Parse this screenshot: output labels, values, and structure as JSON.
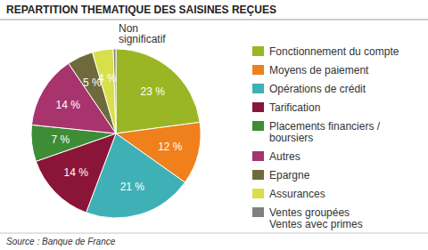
{
  "chart_data": {
    "type": "pie",
    "title": "REPARTITION THEMATIQUE DES SAISINES REÇUES",
    "source": "Source : Banque de France",
    "categories": [
      "Fonctionnement du compte",
      "Moyens de paiement",
      "Opérations de crédit",
      "Tarification",
      "Placements financiers /\nboursiers",
      "Autres",
      "Epargne",
      "Assurances",
      "Ventes groupées\nVentes avec primes"
    ],
    "values": [
      23,
      12,
      21,
      14,
      7,
      14,
      5,
      4,
      0.5
    ],
    "value_labels": [
      "23 %",
      "12 %",
      "21 %",
      "14 %",
      "7 %",
      "14 %",
      "5 %",
      "4 %",
      "Non\nsignificatif"
    ],
    "colors": [
      "#9bb624",
      "#f0801c",
      "#3fb1b6",
      "#8b1538",
      "#3e8c36",
      "#a7346d",
      "#6f6a3c",
      "#d8df4b",
      "#808080"
    ],
    "data_labels": true,
    "legend": "right"
  }
}
